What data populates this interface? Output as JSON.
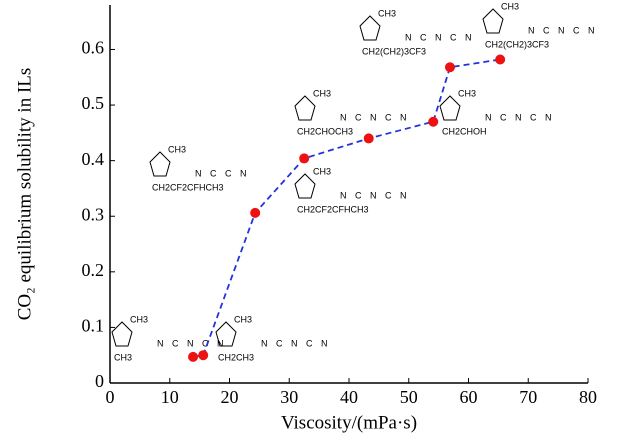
{
  "chart_data": {
    "type": "scatter",
    "xlabel": "Viscosity/(mPa·s)",
    "ylabel": "CO₂ equilibrium solubility in ILs",
    "x": [
      13.9,
      15.6,
      24.3,
      32.5,
      43.3,
      54.1,
      56.9,
      65.3
    ],
    "series": [
      {
        "color": "#ee1111",
        "values": [
          0.047,
          0.05,
          0.306,
          0.404,
          0.44,
          0.47,
          0.568,
          0.582
        ]
      }
    ],
    "line_color": "#2233dd",
    "xlim": [
      0,
      80
    ],
    "xticks": [
      0,
      10,
      20,
      30,
      40,
      50,
      60,
      70,
      80
    ],
    "ylim": [
      0,
      0.68
    ],
    "yticks": [
      0,
      0.1,
      0.2,
      0.3,
      0.4,
      0.5,
      0.6
    ],
    "annotations": [
      {
        "cation": "CH3",
        "substituent": "CH3",
        "anion": "N C N C N"
      },
      {
        "cation": "CH3",
        "substituent": "CH2CH3",
        "anion": "N C N C N"
      },
      {
        "cation": "CH3",
        "substituent": "CH2CF2CFHCH3",
        "anion": "N C C N"
      },
      {
        "cation": "CH3",
        "substituent": "CH2CF2CFHCH3",
        "anion": "N C N C N"
      },
      {
        "cation": "CH3",
        "substituent": "CH2CHOCH3",
        "anion": "N C N C N"
      },
      {
        "cation": "CH3",
        "substituent": "CH2CHOH",
        "anion": "N C N C N"
      },
      {
        "cation": "CH3",
        "substituent": "CH2(CH2)3CF3",
        "anion": "N C N C N"
      },
      {
        "cation": "CH3",
        "substituent": "CH2(CH2)3CF3",
        "anion": "N C N C N"
      }
    ]
  }
}
